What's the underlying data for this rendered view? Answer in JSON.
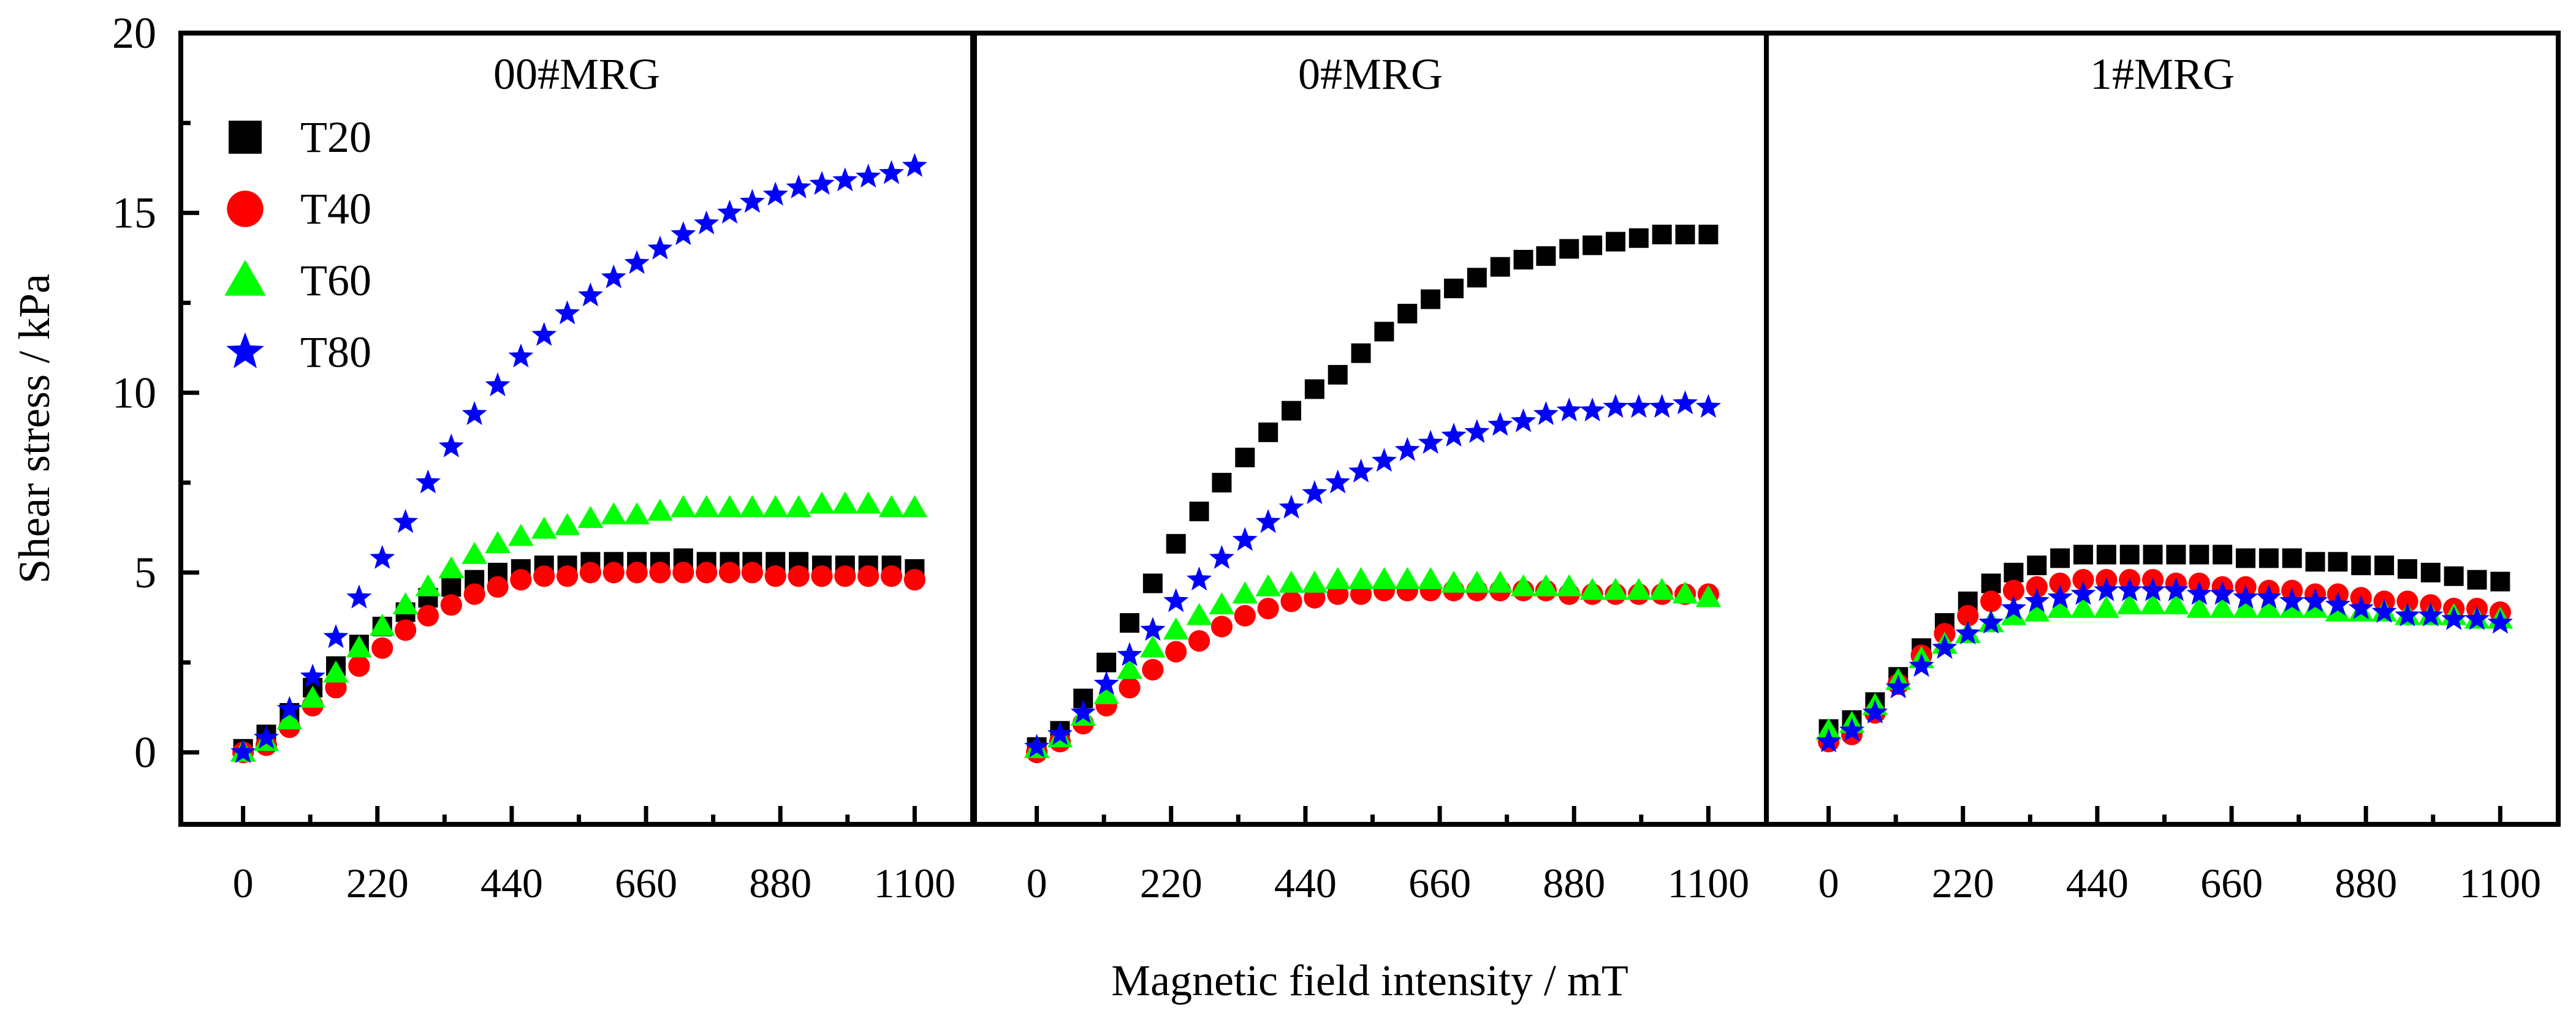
{
  "chart_data": {
    "type": "scatter",
    "xlabel": "Magnetic field intensity / mT",
    "ylabel": "Shear stress / kPa",
    "ylim": [
      -2,
      20
    ],
    "xlim": [
      -102,
      1195
    ],
    "x_ticks": [
      "0",
      "220",
      "440",
      "660",
      "880",
      "1100"
    ],
    "y_ticks": [
      "0",
      "5",
      "10",
      "15",
      "20"
    ],
    "legend_placement": "top-left (first panel)",
    "series_styles": [
      {
        "name": "T20",
        "marker": "square",
        "color": "#000000"
      },
      {
        "name": "T40",
        "marker": "circle",
        "color": "#ff0000"
      },
      {
        "name": "T60",
        "marker": "triangle",
        "color": "#00ff00"
      },
      {
        "name": "T80",
        "marker": "star",
        "color": "#0000ff"
      }
    ],
    "x": [
      0,
      38,
      76,
      114,
      152,
      190,
      228,
      266,
      303,
      341,
      379,
      417,
      455,
      493,
      531,
      569,
      607,
      645,
      683,
      721,
      759,
      797,
      834,
      872,
      910,
      948,
      986,
      1024,
      1062,
      1100
    ],
    "panels": [
      {
        "title": "00#MRG",
        "series": [
          {
            "name": "T20",
            "values": [
              0.1,
              0.5,
              1.1,
              1.8,
              2.4,
              3.0,
              3.5,
              3.9,
              4.3,
              4.6,
              4.8,
              5.0,
              5.1,
              5.2,
              5.2,
              5.3,
              5.3,
              5.3,
              5.3,
              5.4,
              5.3,
              5.3,
              5.3,
              5.3,
              5.3,
              5.2,
              5.2,
              5.2,
              5.2,
              5.1
            ]
          },
          {
            "name": "T40",
            "values": [
              0,
              0.2,
              0.7,
              1.3,
              1.8,
              2.4,
              2.9,
              3.4,
              3.8,
              4.1,
              4.4,
              4.6,
              4.8,
              4.9,
              4.9,
              5.0,
              5.0,
              5.0,
              5.0,
              5.0,
              5.0,
              5.0,
              5.0,
              4.9,
              4.9,
              4.9,
              4.9,
              4.9,
              4.9,
              4.8
            ]
          },
          {
            "name": "T60",
            "values": [
              0,
              0.3,
              0.9,
              1.5,
              2.2,
              2.9,
              3.5,
              4.1,
              4.6,
              5.1,
              5.5,
              5.8,
              6.0,
              6.2,
              6.3,
              6.5,
              6.6,
              6.6,
              6.7,
              6.8,
              6.8,
              6.8,
              6.8,
              6.8,
              6.8,
              6.9,
              6.9,
              6.9,
              6.8,
              6.8
            ]
          },
          {
            "name": "T80",
            "values": [
              0,
              0.4,
              1.2,
              2.1,
              3.2,
              4.3,
              5.4,
              6.4,
              7.5,
              8.5,
              9.4,
              10.2,
              11.0,
              11.6,
              12.2,
              12.7,
              13.2,
              13.6,
              14.0,
              14.4,
              14.7,
              15.0,
              15.3,
              15.5,
              15.7,
              15.8,
              15.9,
              16.0,
              16.1,
              16.3
            ]
          }
        ]
      },
      {
        "title": "0#MRG",
        "series": [
          {
            "name": "T20",
            "values": [
              0.15,
              0.6,
              1.5,
              2.5,
              3.6,
              4.7,
              5.8,
              6.7,
              7.5,
              8.2,
              8.9,
              9.5,
              10.1,
              10.5,
              11.1,
              11.7,
              12.2,
              12.6,
              12.9,
              13.2,
              13.5,
              13.7,
              13.8,
              14.0,
              14.1,
              14.2,
              14.3,
              14.4,
              14.4,
              14.4
            ]
          },
          {
            "name": "T40",
            "values": [
              0,
              0.3,
              0.8,
              1.3,
              1.8,
              2.3,
              2.8,
              3.1,
              3.5,
              3.8,
              4.0,
              4.2,
              4.3,
              4.4,
              4.4,
              4.5,
              4.5,
              4.5,
              4.5,
              4.5,
              4.5,
              4.5,
              4.5,
              4.4,
              4.4,
              4.4,
              4.4,
              4.4,
              4.4,
              4.4
            ]
          },
          {
            "name": "T60",
            "values": [
              0.1,
              0.4,
              1.0,
              1.6,
              2.3,
              2.9,
              3.4,
              3.8,
              4.1,
              4.4,
              4.6,
              4.7,
              4.7,
              4.8,
              4.8,
              4.8,
              4.8,
              4.8,
              4.7,
              4.7,
              4.7,
              4.6,
              4.6,
              4.6,
              4.5,
              4.5,
              4.5,
              4.5,
              4.4,
              4.3
            ]
          },
          {
            "name": "T80",
            "values": [
              0.15,
              0.5,
              1.1,
              1.9,
              2.7,
              3.4,
              4.2,
              4.8,
              5.4,
              5.9,
              6.4,
              6.8,
              7.2,
              7.5,
              7.8,
              8.1,
              8.4,
              8.6,
              8.8,
              8.9,
              9.1,
              9.2,
              9.4,
              9.5,
              9.5,
              9.6,
              9.6,
              9.6,
              9.7,
              9.6
            ]
          }
        ]
      },
      {
        "title": "1#MRG",
        "series": [
          {
            "name": "T20",
            "values": [
              0.65,
              0.9,
              1.4,
              2.1,
              2.9,
              3.6,
              4.2,
              4.7,
              5.0,
              5.2,
              5.4,
              5.5,
              5.5,
              5.5,
              5.5,
              5.5,
              5.5,
              5.5,
              5.4,
              5.4,
              5.4,
              5.3,
              5.3,
              5.2,
              5.2,
              5.1,
              5.0,
              4.9,
              4.8,
              4.75
            ]
          },
          {
            "name": "T40",
            "values": [
              0.3,
              0.5,
              1.1,
              1.9,
              2.7,
              3.3,
              3.8,
              4.2,
              4.5,
              4.6,
              4.7,
              4.8,
              4.8,
              4.8,
              4.8,
              4.7,
              4.7,
              4.6,
              4.6,
              4.5,
              4.5,
              4.4,
              4.4,
              4.3,
              4.2,
              4.2,
              4.1,
              4.0,
              4.0,
              3.9
            ]
          },
          {
            "name": "T60",
            "values": [
              0.6,
              0.8,
              1.3,
              2.0,
              2.6,
              3.0,
              3.3,
              3.6,
              3.8,
              3.9,
              4.0,
              4.0,
              4.0,
              4.1,
              4.1,
              4.1,
              4.0,
              4.0,
              4.0,
              4.0,
              4.0,
              4.0,
              3.9,
              3.9,
              3.9,
              3.8,
              3.8,
              3.8,
              3.7,
              3.7
            ]
          },
          {
            "name": "T80",
            "values": [
              0.3,
              0.6,
              1.1,
              1.8,
              2.4,
              2.9,
              3.3,
              3.6,
              4.0,
              4.2,
              4.3,
              4.4,
              4.5,
              4.5,
              4.5,
              4.5,
              4.4,
              4.4,
              4.3,
              4.3,
              4.2,
              4.2,
              4.1,
              4.0,
              3.9,
              3.8,
              3.8,
              3.7,
              3.7,
              3.6
            ]
          }
        ]
      }
    ]
  }
}
